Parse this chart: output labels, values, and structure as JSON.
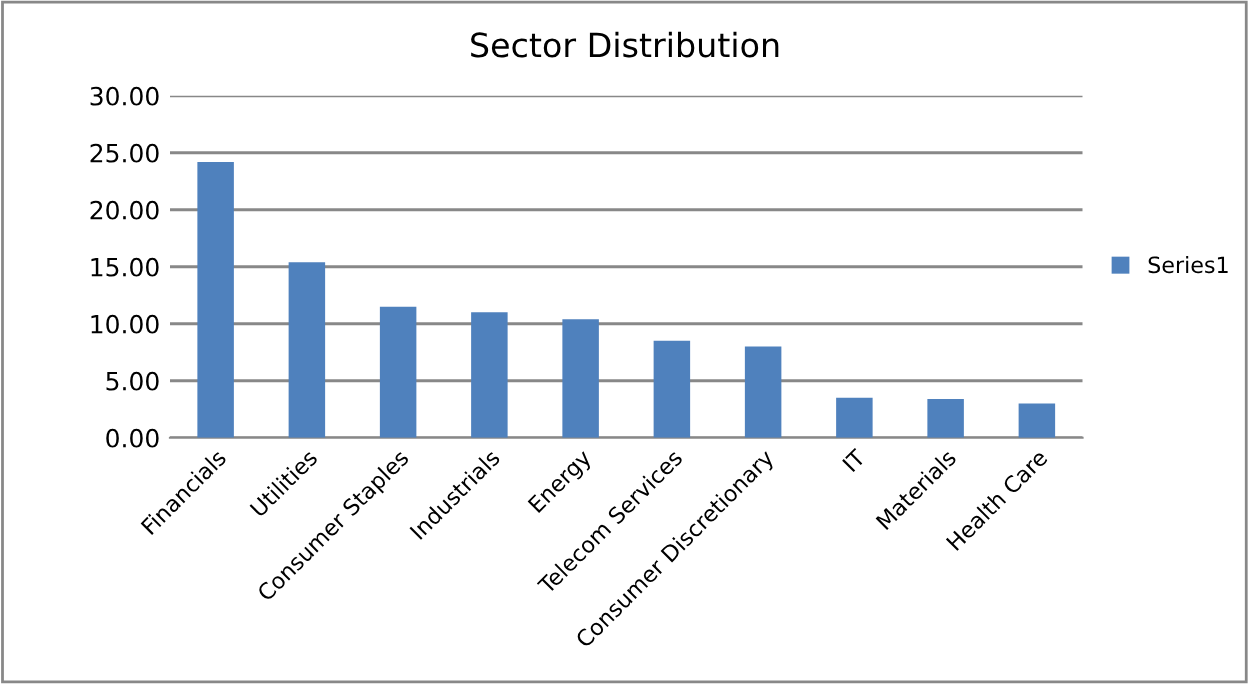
{
  "chart_data": {
    "type": "bar",
    "title": "Sector Distribution",
    "categories": [
      "Financials",
      "Utilities",
      "Consumer Staples",
      "Industrials",
      "Energy",
      "Telecom Services",
      "Consumer Discretionary",
      "IT",
      "Materials",
      "Health Care"
    ],
    "series": [
      {
        "name": "Series1",
        "color": "#4f81bd",
        "values": [
          24.2,
          15.4,
          11.5,
          11.0,
          10.4,
          8.5,
          8.0,
          3.5,
          3.4,
          3.0
        ]
      }
    ],
    "ylim": [
      0,
      30
    ],
    "yticks": [
      {
        "value": 0,
        "label": "0.00"
      },
      {
        "value": 5,
        "label": "5.00"
      },
      {
        "value": 10,
        "label": "10.00"
      },
      {
        "value": 15,
        "label": "15.00"
      },
      {
        "value": 20,
        "label": "20.00"
      },
      {
        "value": 25,
        "label": "25.00"
      },
      {
        "value": 30,
        "label": "30.00"
      }
    ],
    "grid": "y",
    "legend": "right"
  }
}
